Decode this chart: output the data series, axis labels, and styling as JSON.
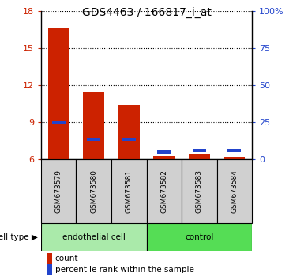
{
  "title": "GDS4463 / 166817_i_at",
  "samples": [
    "GSM673579",
    "GSM673580",
    "GSM673581",
    "GSM673582",
    "GSM673583",
    "GSM673584"
  ],
  "red_values": [
    16.6,
    11.4,
    10.4,
    6.25,
    6.35,
    6.2
  ],
  "blue_bottom": [
    8.85,
    7.45,
    7.45,
    6.45,
    6.55,
    6.55
  ],
  "blue_height": [
    0.28,
    0.28,
    0.28,
    0.28,
    0.28,
    0.28
  ],
  "ymin": 6,
  "ymax": 18,
  "yticks": [
    6,
    9,
    12,
    15,
    18
  ],
  "right_ytick_pcts": [
    0,
    25,
    50,
    75,
    100
  ],
  "right_yticklabels": [
    "0",
    "25",
    "50",
    "75",
    "100%"
  ],
  "group1_label": "endothelial cell",
  "group2_label": "control",
  "group1_indices": [
    0,
    1,
    2
  ],
  "group2_indices": [
    3,
    4,
    5
  ],
  "cell_type_label": "cell type",
  "legend_items": [
    "count",
    "percentile rank within the sample"
  ],
  "bar_width": 0.6,
  "group1_bg": "#aaeaaa",
  "group2_bg": "#55dd55",
  "sample_bg": "#d0d0d0",
  "red_color": "#cc2200",
  "blue_color": "#2244cc",
  "title_fontsize": 10,
  "tick_fontsize": 8,
  "legend_fontsize": 7.5
}
